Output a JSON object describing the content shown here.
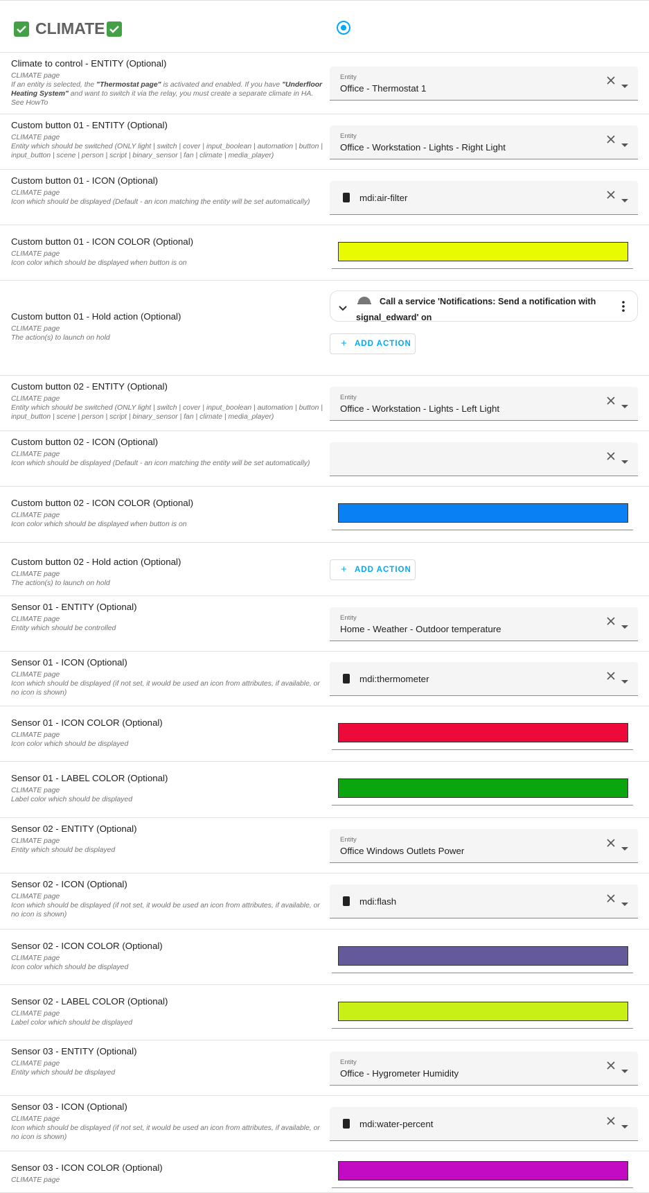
{
  "header": {
    "title": "CLIMATE"
  },
  "rows": [
    {
      "label": "Climate to control - ENTITY (Optional)",
      "page": "CLIMATE page",
      "description": [
        {
          "text": "If an entity is selected, the ",
          "bold": false
        },
        {
          "text": "\"Thermostat page\"",
          "bold": true
        },
        {
          "text": " is activated and enabled. If you have ",
          "bold": false
        },
        {
          "text": "\"Underfloor Heating System\"",
          "bold": true
        },
        {
          "text": " and want to switch it via the relay, you must create a separate climate in HA. See HowTo",
          "bold": false
        }
      ],
      "control": {
        "kind": "entity",
        "caption": "Entity",
        "value": "Office - Thermostat 1"
      }
    },
    {
      "label": "Custom button 01 - ENTITY (Optional)",
      "page": "CLIMATE page",
      "description": "Entity which should be switched (ONLY light | switch | cover | input_boolean | automation | button | input_button | scene | person | script | binary_sensor | fan | climate | media_player)",
      "control": {
        "kind": "entity",
        "caption": "Entity",
        "value": "Office - Workstation - Lights - Right Light"
      }
    },
    {
      "label": "Custom button 01 - ICON (Optional)",
      "page": "CLIMATE page",
      "description": "Icon which should be displayed (Default - an icon matching the entity will be set automatically)",
      "control": {
        "kind": "icon",
        "value": "mdi:air-filter"
      }
    },
    {
      "label": "Custom button 01 - ICON COLOR (Optional)",
      "page": "CLIMATE page",
      "description": "Icon color which should be displayed when button is on",
      "control": {
        "kind": "color",
        "color": "#e9fb00"
      }
    },
    {
      "label": "Custom button 01 - Hold action (Optional)",
      "page": "CLIMATE page",
      "description": "The action(s) to launch on hold",
      "control": {
        "kind": "action",
        "action": "Call a service 'Notifications: Send a notification with signal_edward' on",
        "button": "ADD ACTION"
      }
    },
    {
      "label": "Custom button 02 - ENTITY (Optional)",
      "page": "CLIMATE page",
      "description": "Entity which should be switched (ONLY light | switch | cover | input_boolean | automation | button | input_button | scene | person | script | binary_sensor | fan | climate | media_player)",
      "control": {
        "kind": "entity",
        "caption": "Entity",
        "value": "Office - Workstation - Lights - Left Light"
      }
    },
    {
      "label": "Custom button 02 - ICON (Optional)",
      "page": "CLIMATE page",
      "description": "Icon which should be displayed (Default - an icon matching the entity will be set automatically)",
      "control": {
        "kind": "icon"
      }
    },
    {
      "label": "Custom button 02 - ICON COLOR (Optional)",
      "page": "CLIMATE page",
      "description": "Icon color which should be displayed when button is on",
      "control": {
        "kind": "color",
        "color": "#0a80f5"
      }
    },
    {
      "label": "Custom button 02 - Hold action (Optional)",
      "page": "CLIMATE page",
      "description": "The action(s) to launch on hold",
      "control": {
        "kind": "action",
        "button": "ADD ACTION"
      }
    },
    {
      "label": "Sensor 01 - ENTITY (Optional)",
      "page": "CLIMATE page",
      "description": "Entity which should be controlled",
      "control": {
        "kind": "entity",
        "caption": "Entity",
        "value": "Home - Weather - Outdoor temperature"
      }
    },
    {
      "label": "Sensor 01 - ICON (Optional)",
      "page": "CLIMATE page",
      "description": "Icon which should be displayed (if not set, it would be used an icon from attributes, if available, or no icon is shown)",
      "control": {
        "kind": "icon",
        "value": "mdi:thermometer"
      }
    },
    {
      "label": "Sensor 01 - ICON COLOR (Optional)",
      "page": "CLIMATE page",
      "description": "Icon color which should be displayed",
      "control": {
        "kind": "color",
        "color": "#ed0a3a"
      }
    },
    {
      "label": "Sensor 01 - LABEL COLOR (Optional)",
      "page": "CLIMATE page",
      "description": "Label color which should be displayed",
      "control": {
        "kind": "color",
        "color": "#0aa50f"
      }
    },
    {
      "label": "Sensor 02 - ENTITY (Optional)",
      "page": "CLIMATE page",
      "description": "Entity which should be displayed",
      "control": {
        "kind": "entity",
        "caption": "Entity",
        "value": "Office Windows Outlets Power"
      }
    },
    {
      "label": "Sensor 02 - ICON (Optional)",
      "page": "CLIMATE page",
      "description": "Icon which should be displayed (if not set, it would be used an icon from attributes, if available, or no icon is shown)",
      "control": {
        "kind": "icon",
        "value": "mdi:flash"
      }
    },
    {
      "label": "Sensor 02 - ICON COLOR (Optional)",
      "page": "CLIMATE page",
      "description": "Icon color which should be displayed",
      "control": {
        "kind": "color",
        "color": "#645a9b"
      }
    },
    {
      "label": "Sensor 02 - LABEL COLOR (Optional)",
      "page": "CLIMATE page",
      "description": "Label color which should be displayed",
      "control": {
        "kind": "color",
        "color": "#c8ef16"
      }
    },
    {
      "label": "Sensor 03 - ENTITY (Optional)",
      "page": "CLIMATE page",
      "description": "Entity which should be displayed",
      "control": {
        "kind": "entity",
        "caption": "Entity",
        "value": "Office - Hygrometer Humidity"
      }
    },
    {
      "label": "Sensor 03 - ICON (Optional)",
      "page": "CLIMATE page",
      "description": "Icon which should be displayed (if not set, it would be used an icon from attributes, if available, or no icon is shown)",
      "control": {
        "kind": "icon",
        "value": "mdi:water-percent"
      }
    },
    {
      "label": "Sensor 03 - ICON COLOR (Optional)",
      "page": "CLIMATE page",
      "control": {
        "kind": "color",
        "color": "#c40bc4"
      }
    }
  ]
}
